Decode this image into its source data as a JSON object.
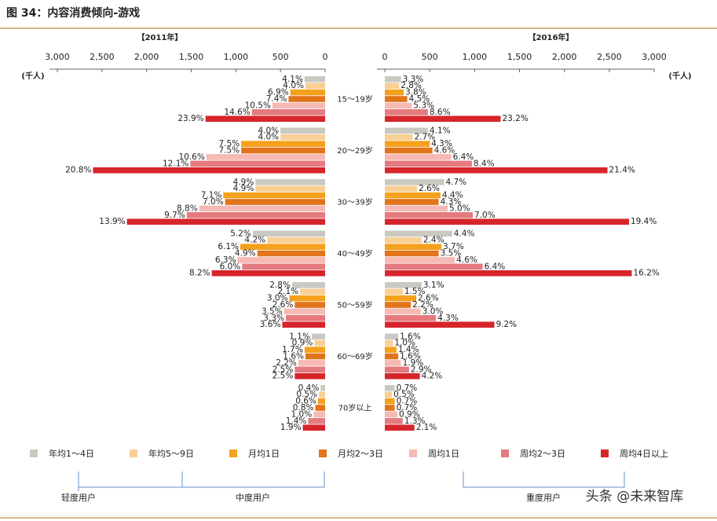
{
  "chart_data": {
    "type": "butterfly",
    "title": "图 34：内容消费倾向-游戏",
    "unit_label": "(千人)",
    "categories": [
      "15～19岁",
      "20～29岁",
      "30～39岁",
      "40～49岁",
      "50～59岁",
      "60～69岁",
      "70岁以上"
    ],
    "xlim": [
      0,
      3000
    ],
    "xticks": [
      0,
      500,
      {
        "value": 1000,
        "label": "1,000"
      },
      {
        "value": 1500,
        "label": "1,500"
      },
      {
        "value": 2000,
        "label": "2,000"
      },
      {
        "value": 2500,
        "label": "2,500"
      },
      {
        "value": 3000,
        "label": "3,000"
      }
    ],
    "series": [
      {
        "name": "年均1～4日",
        "color": "#c9c9c1"
      },
      {
        "name": "年均5～9日",
        "color": "#f8cf95"
      },
      {
        "name": "月均1日",
        "color": "#f4a11d"
      },
      {
        "name": "月均2～3日",
        "color": "#e2741a"
      },
      {
        "name": "周均1日",
        "color": "#f6b9b4"
      },
      {
        "name": "周均2～3日",
        "color": "#e57a7f"
      },
      {
        "name": "周均4日以上",
        "color": "#d6252b"
      }
    ],
    "groups": [
      "轻度用户",
      "中度用户",
      "重度用户"
    ],
    "panels": [
      {
        "title": "【2011年】",
        "side": "left",
        "series": [
          {
            "values": [
              230,
              500,
              780,
              810,
              370,
              150,
              50
            ],
            "share_labels": [
              "4.1%",
              "4.0%",
              "4.9%",
              "5.2%",
              "2.8%",
              "1.1%",
              "0.4%"
            ]
          },
          {
            "values": [
              220,
              500,
              780,
              650,
              280,
              120,
              70
            ],
            "share_labels": [
              "4.0%",
              "4.0%",
              "4.9%",
              "4.2%",
              "2.1%",
              "0.9%",
              "0.5%"
            ]
          },
          {
            "values": [
              390,
              940,
              1140,
              950,
              400,
              230,
              80
            ],
            "share_labels": [
              "6.9%",
              "7.5%",
              "7.1%",
              "6.1%",
              "3.0%",
              "1.7%",
              "0.6%"
            ]
          },
          {
            "values": [
              410,
              940,
              1120,
              760,
              340,
              220,
              110
            ],
            "share_labels": [
              "7.4%",
              "7.5%",
              "7.0%",
              "4.9%",
              "2.6%",
              "1.6%",
              "0.8%"
            ]
          },
          {
            "values": [
              590,
              1330,
              1410,
              980,
              460,
              300,
              130
            ],
            "share_labels": [
              "10.5%",
              "10.6%",
              "8.8%",
              "6.3%",
              "3.5%",
              "2.2%",
              "1.0%"
            ]
          },
          {
            "values": [
              820,
              1510,
              1550,
              930,
              440,
              340,
              190
            ],
            "share_labels": [
              "14.6%",
              "12.1%",
              "9.7%",
              "6.0%",
              "3.3%",
              "2.5%",
              "1.4%"
            ]
          },
          {
            "values": [
              1340,
              2600,
              2220,
              1270,
              480,
              340,
              250
            ],
            "share_labels": [
              "23.9%",
              "20.8%",
              "13.9%",
              "8.2%",
              "3.6%",
              "2.5%",
              "1.9%"
            ]
          }
        ]
      },
      {
        "title": "【2016年】",
        "side": "right",
        "series": [
          {
            "values": [
              180,
              480,
              660,
              750,
              410,
              150,
              110
            ],
            "share_labels": [
              "3.3%",
              "4.1%",
              "4.7%",
              "4.4%",
              "3.1%",
              "1.6%",
              "0.7%"
            ]
          },
          {
            "values": [
              160,
              310,
              360,
              410,
              200,
              90,
              80
            ],
            "share_labels": [
              "2.8%",
              "2.7%",
              "2.6%",
              "2.4%",
              "1.5%",
              "1.0%",
              "0.5%"
            ]
          },
          {
            "values": [
              210,
              500,
              620,
              630,
              350,
              130,
              110
            ],
            "share_labels": [
              "3.8%",
              "4.3%",
              "4.4%",
              "3.7%",
              "2.6%",
              "1.4%",
              "0.7%"
            ]
          },
          {
            "values": [
              250,
              530,
              600,
              600,
              290,
              150,
              110
            ],
            "share_labels": [
              "4.5%",
              "4.6%",
              "4.3%",
              "3.5%",
              "2.2%",
              "1.6%",
              "0.7%"
            ]
          },
          {
            "values": [
              300,
              740,
              700,
              780,
              400,
              180,
              140
            ],
            "share_labels": [
              "5.3%",
              "6.4%",
              "5.0%",
              "4.6%",
              "3.0%",
              "1.9%",
              "0.9%"
            ]
          },
          {
            "values": [
              480,
              970,
              980,
              1090,
              570,
              270,
              200
            ],
            "share_labels": [
              "8.6%",
              "8.4%",
              "7.0%",
              "6.4%",
              "4.3%",
              "2.9%",
              "1.3%"
            ]
          },
          {
            "values": [
              1290,
              2480,
              2720,
              2750,
              1220,
              390,
              330
            ],
            "share_labels": [
              "23.2%",
              "21.4%",
              "19.4%",
              "16.2%",
              "9.2%",
              "4.2%",
              "2.1%"
            ]
          }
        ]
      }
    ]
  },
  "watermark": "头条 @未来智库"
}
